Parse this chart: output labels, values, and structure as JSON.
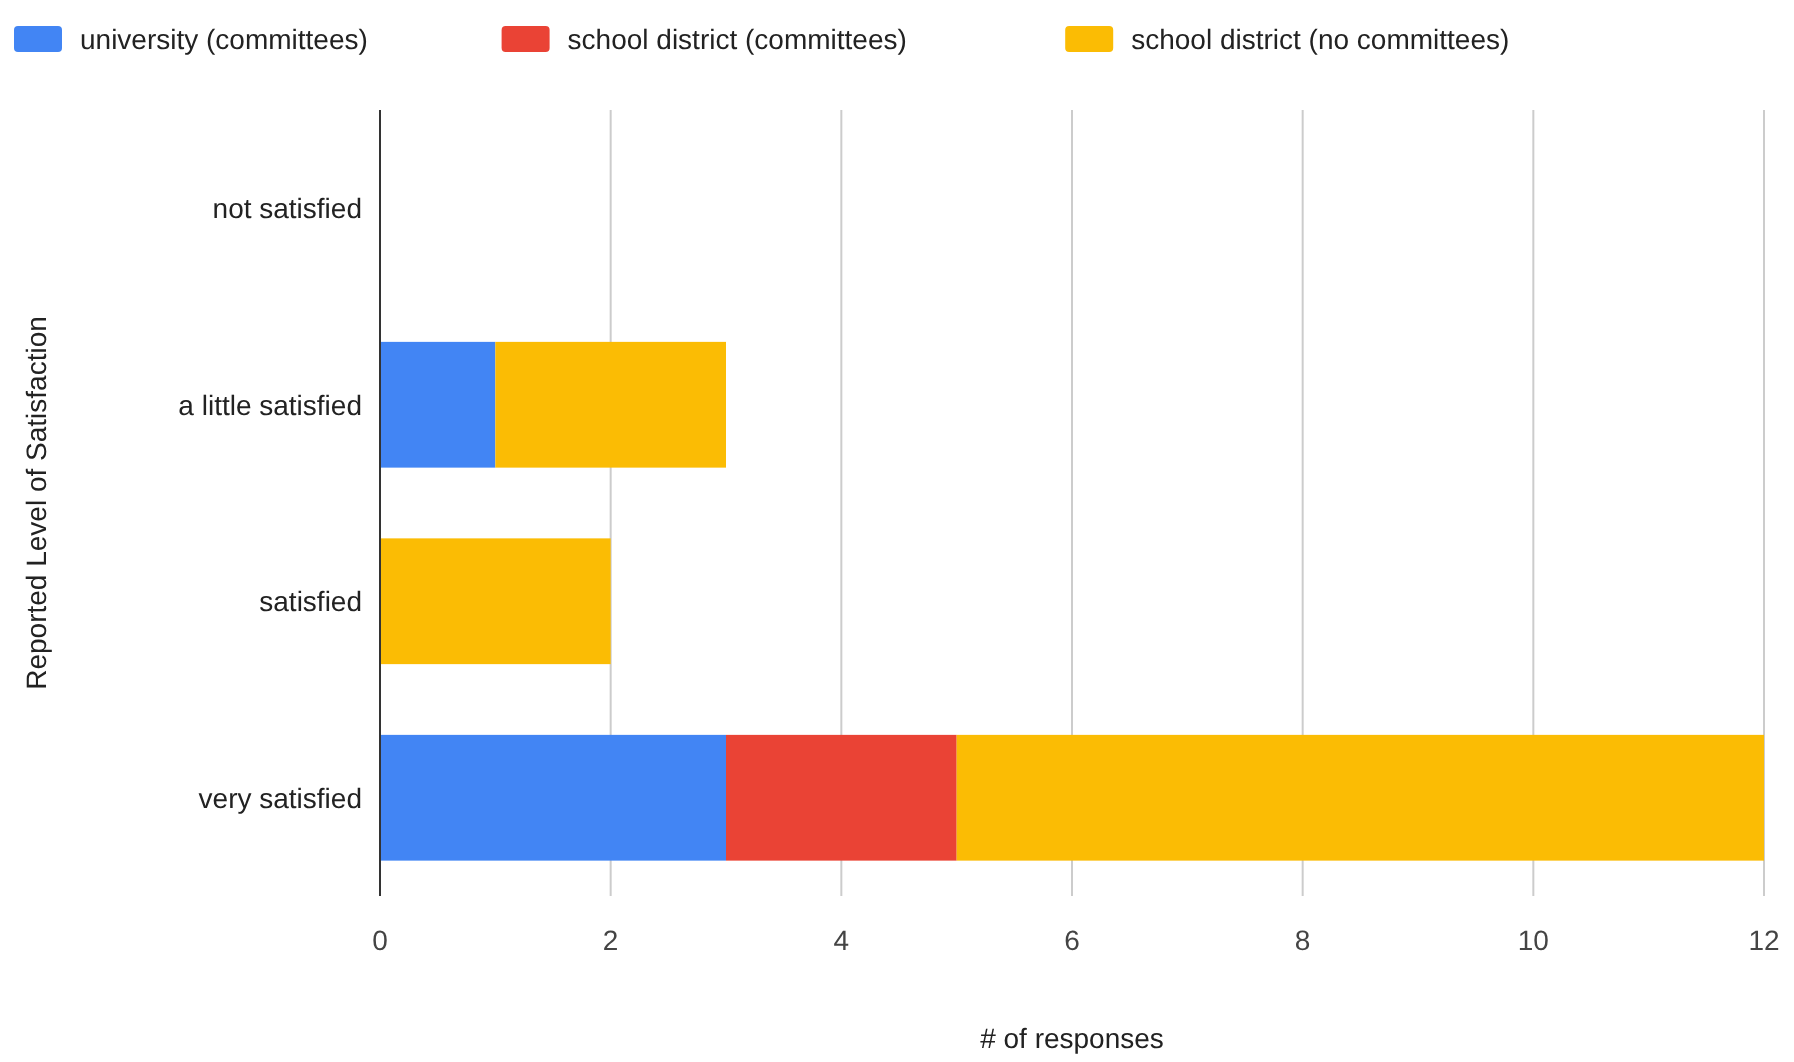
{
  "chart_data": {
    "type": "bar",
    "orientation": "horizontal",
    "stacked": true,
    "xlabel": "# of responses",
    "ylabel": "Reported Level of Satisfaction",
    "categories": [
      "not satisfied",
      "a little satisfied",
      "satisfied",
      "very satisfied"
    ],
    "series": [
      {
        "name": "university (committees)",
        "color": "#4285f4",
        "values": [
          0,
          1,
          0,
          3
        ]
      },
      {
        "name": "school district (committees)",
        "color": "#ea4335",
        "values": [
          0,
          0,
          0,
          2
        ]
      },
      {
        "name": "school district (no committees)",
        "color": "#fbbc04",
        "values": [
          0,
          2,
          2,
          7
        ]
      }
    ],
    "xlim": [
      0,
      12
    ],
    "xticks": [
      0,
      2,
      4,
      6,
      8,
      10,
      12
    ],
    "grid": "x",
    "legend": "top"
  }
}
